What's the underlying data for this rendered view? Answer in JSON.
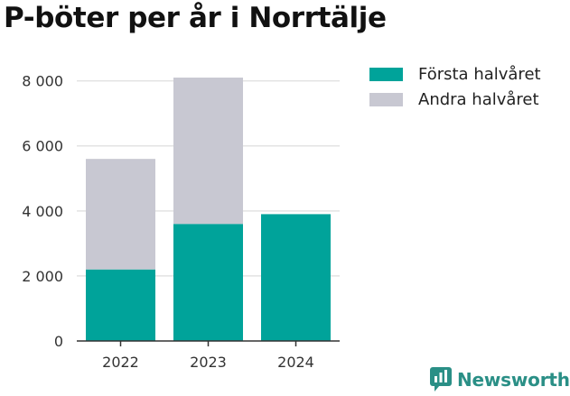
{
  "title": "P-böter per år i Norrtälje",
  "brand": {
    "label": "Newsworthy",
    "icon": "newsworthy-logo-icon",
    "color": "#2a8f86"
  },
  "chart_data": {
    "type": "bar",
    "stacked": true,
    "categories": [
      "2022",
      "2023",
      "2024"
    ],
    "series": [
      {
        "name": "Första halvåret",
        "color": "#00a39a",
        "values": [
          2200,
          3600,
          3900
        ]
      },
      {
        "name": "Andra halvåret",
        "color": "#c8c8d2",
        "values": [
          3400,
          4500,
          0
        ]
      }
    ],
    "ylim": [
      0,
      8600
    ],
    "yticks": [
      {
        "value": 0,
        "label": "0"
      },
      {
        "value": 2000,
        "label": "2 000"
      },
      {
        "value": 4000,
        "label": "4 000"
      },
      {
        "value": 6000,
        "label": "6 000"
      },
      {
        "value": 8000,
        "label": "8 000"
      }
    ],
    "grid": true,
    "legend": "top-right",
    "xlabel": "",
    "ylabel": ""
  }
}
